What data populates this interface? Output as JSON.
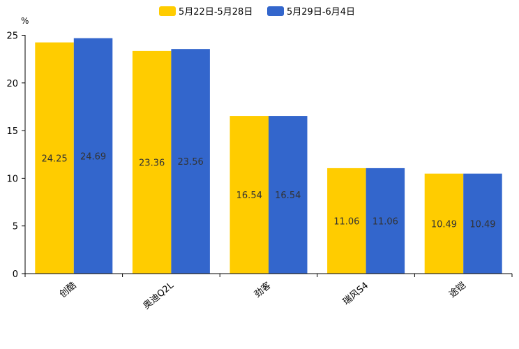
{
  "chart_data": {
    "type": "bar",
    "title": "",
    "xlabel": "",
    "ylabel": "%",
    "ylim": [
      0,
      25
    ],
    "yticks": [
      0,
      5,
      10,
      15,
      20,
      25
    ],
    "grid": false,
    "legend_position": "top-center",
    "categories": [
      "创酷",
      "奥迪Q2L",
      "劲客",
      "瑞风S4",
      "途铠"
    ],
    "series": [
      {
        "name": "5月22日-5月28日",
        "color": "#FFCC00",
        "values": [
          24.25,
          23.36,
          16.54,
          11.06,
          10.49
        ]
      },
      {
        "name": "5月29日-6月4日",
        "color": "#3366CC",
        "values": [
          24.69,
          23.56,
          16.54,
          11.06,
          10.49
        ]
      }
    ]
  }
}
